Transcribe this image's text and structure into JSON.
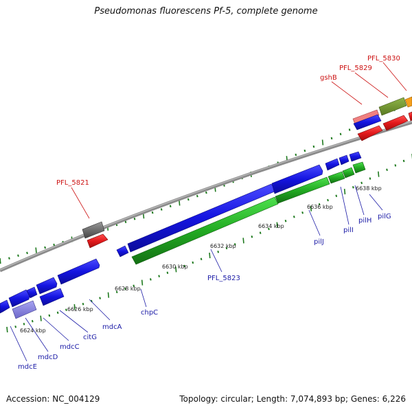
{
  "title": "Pseudomonas fluorescens Pf-5, complete genome",
  "footer": {
    "accession": "Accession: NC_004129",
    "summary": "Topology: circular; Length: 7,074,893 bp; Genes: 6,226"
  },
  "colors": {
    "backbone": "#8c8c8c",
    "tick": "#1f7a1f",
    "forward_cds": "#1515e6",
    "reverse_cds": "#22aa22",
    "red_feature": "#e31a1c",
    "gray_feature": "#6e6e6e",
    "label_blue": "#1a1aa6",
    "label_red": "#cc1111"
  },
  "scale_labels": [
    "6624 kbp",
    "6626 kbp",
    "6628 kbp",
    "6630 kbp",
    "6632 kbp",
    "6634 kbp",
    "6636 kbp",
    "6638 kbp"
  ],
  "gene_labels": {
    "blue": [
      "mdcE",
      "mdcD",
      "mdcC",
      "citG",
      "mdcA",
      "chpC",
      "PFL_5823",
      "pilJ",
      "pilI",
      "pilH",
      "pilG"
    ],
    "red": [
      "PFL_5821",
      "gshB",
      "PFL_5829",
      "PFL_5830"
    ]
  }
}
